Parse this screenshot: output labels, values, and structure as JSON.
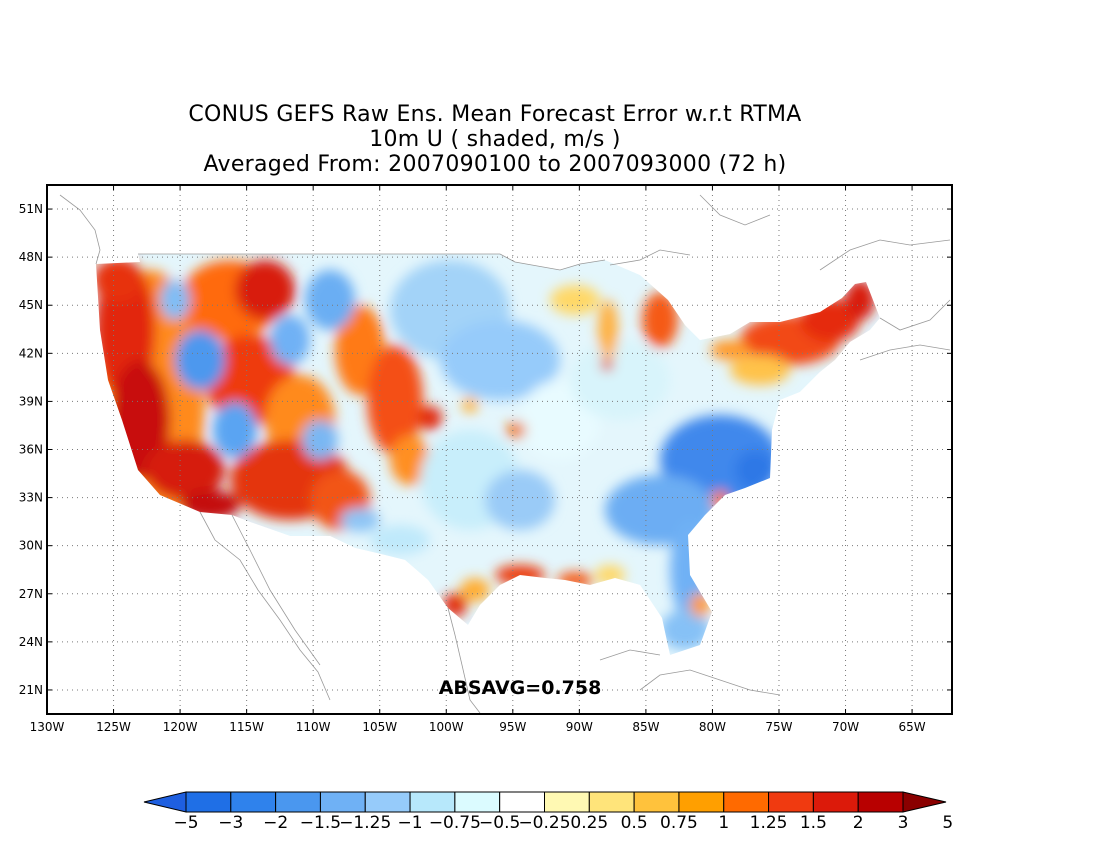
{
  "title": {
    "line1": "CONUS GEFS Raw Ens. Mean Forecast Error w.r.t RTMA",
    "line2": "10m U ( shaded, m/s )",
    "line3": "Averaged From: 2007090100 to 2007093000 (72 h)"
  },
  "annotation": {
    "absavg": "ABSAVG=0.758"
  },
  "axes": {
    "lat_labels": [
      "51N",
      "48N",
      "45N",
      "42N",
      "39N",
      "36N",
      "33N",
      "30N",
      "27N",
      "24N",
      "21N"
    ],
    "lat_values": [
      51,
      48,
      45,
      42,
      39,
      36,
      33,
      30,
      27,
      24,
      21
    ],
    "lon_labels": [
      "130W",
      "125W",
      "120W",
      "115W",
      "110W",
      "105W",
      "100W",
      "95W",
      "90W",
      "85W",
      "80W",
      "75W",
      "70W",
      "65W"
    ],
    "lon_values": [
      -130,
      -125,
      -120,
      -115,
      -110,
      -105,
      -100,
      -95,
      -90,
      -85,
      -80,
      -75,
      -70,
      -65
    ],
    "lon_range": [
      -130,
      -62
    ],
    "lat_range": [
      19.5,
      52.5
    ],
    "grid": "dotted"
  },
  "colorbar": {
    "labels": [
      "-5",
      "-3",
      "-2",
      "-1.5",
      "-1.25",
      "-1",
      "-0.75",
      "-0.5",
      "-0.25",
      "0.25",
      "0.5",
      "0.75",
      "1",
      "1.25",
      "1.5",
      "2",
      "3",
      "5"
    ],
    "colors": [
      "#1e5fe0",
      "#1f6fe6",
      "#2f82ec",
      "#4a97ef",
      "#6fb1f5",
      "#96cbfa",
      "#b7e8fb",
      "#dbfbff",
      "#ffffff",
      "#fff9b3",
      "#ffe47a",
      "#ffc23c",
      "#ff9f00",
      "#ff6a00",
      "#f03a10",
      "#dc1a0a",
      "#b80000",
      "#8a0000"
    ]
  },
  "palette": {
    "land_outline": "#999999",
    "frame": "#000000"
  }
}
